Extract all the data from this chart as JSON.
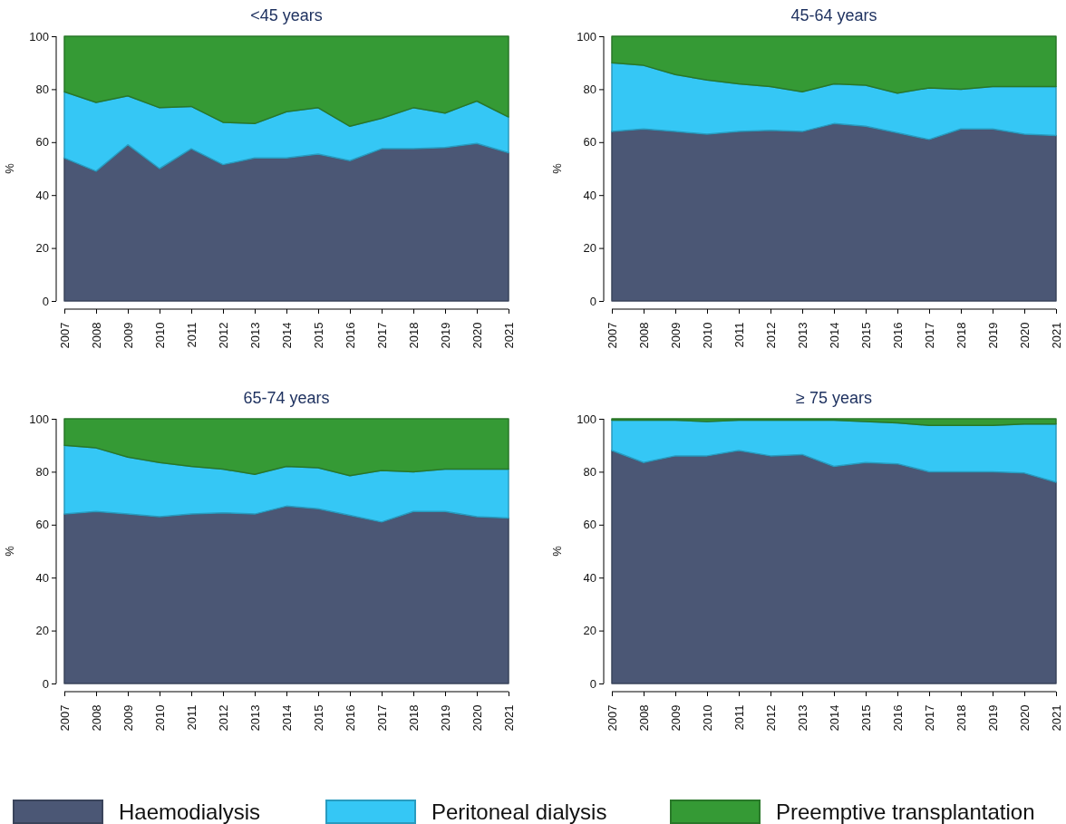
{
  "chart_data": [
    {
      "type": "area",
      "title": "<45 years",
      "ylabel": "%",
      "stacked": true,
      "legend": "bottom",
      "x": [
        2007,
        2008,
        2009,
        2010,
        2011,
        2012,
        2013,
        2014,
        2015,
        2016,
        2017,
        2018,
        2019,
        2020,
        2021
      ],
      "xlim": [
        2007,
        2021
      ],
      "xticks": [
        2007,
        2008,
        2009,
        2010,
        2011,
        2012,
        2013,
        2014,
        2015,
        2016,
        2017,
        2018,
        2019,
        2020,
        2021
      ],
      "ylim": [
        0,
        100
      ],
      "yticks": [
        0,
        20,
        40,
        60,
        80,
        100
      ],
      "series": [
        {
          "name": "Haemodialysis",
          "color": "#4b5775",
          "values": [
            54,
            49,
            59,
            50,
            57.5,
            51.5,
            54,
            54,
            55.5,
            53,
            57.5,
            57.5,
            58,
            59.5,
            56
          ]
        },
        {
          "name": "Peritoneal dialysis",
          "color": "#35c7f5",
          "values": [
            25,
            26,
            18.5,
            23,
            16,
            16,
            13,
            17.5,
            17.5,
            13,
            11.5,
            15.5,
            13,
            16,
            13.5
          ]
        },
        {
          "name": "Preemptive transplantation",
          "color": "#359a35",
          "values": [
            21,
            25,
            22.5,
            27,
            26.5,
            32.5,
            33,
            28.5,
            27,
            34,
            31,
            27,
            29,
            24.5,
            30.5
          ]
        }
      ]
    },
    {
      "type": "area",
      "title": "45-64 years",
      "ylabel": "%",
      "stacked": true,
      "x": [
        2007,
        2008,
        2009,
        2010,
        2011,
        2012,
        2013,
        2014,
        2015,
        2016,
        2017,
        2018,
        2019,
        2020,
        2021
      ],
      "xlim": [
        2007,
        2021
      ],
      "xticks": [
        2007,
        2008,
        2009,
        2010,
        2011,
        2012,
        2013,
        2014,
        2015,
        2016,
        2017,
        2018,
        2019,
        2020,
        2021
      ],
      "ylim": [
        0,
        100
      ],
      "yticks": [
        0,
        20,
        40,
        60,
        80,
        100
      ],
      "series": [
        {
          "color": "#4b5775",
          "values": [
            64,
            65,
            64,
            63,
            64,
            64.5,
            64,
            67,
            66,
            63.5,
            61,
            65,
            65,
            63,
            62.5
          ]
        },
        {
          "color": "#35c7f5",
          "values": [
            26,
            24,
            21.5,
            20.5,
            18,
            16.5,
            15,
            15,
            15.5,
            15,
            19.5,
            15,
            16,
            18,
            18.5
          ]
        },
        {
          "color": "#359a35",
          "values": [
            10,
            11,
            14.5,
            16.5,
            18,
            19,
            21,
            18,
            18.5,
            21.5,
            19.5,
            20,
            19,
            19,
            19
          ]
        }
      ]
    },
    {
      "type": "area",
      "title": "65-74 years",
      "ylabel": "%",
      "stacked": true,
      "x": [
        2007,
        2008,
        2009,
        2010,
        2011,
        2012,
        2013,
        2014,
        2015,
        2016,
        2017,
        2018,
        2019,
        2020,
        2021
      ],
      "xlim": [
        2007,
        2021
      ],
      "xticks": [
        2007,
        2008,
        2009,
        2010,
        2011,
        2012,
        2013,
        2014,
        2015,
        2016,
        2017,
        2018,
        2019,
        2020,
        2021
      ],
      "ylim": [
        0,
        100
      ],
      "yticks": [
        0,
        20,
        40,
        60,
        80,
        100
      ],
      "series": [
        {
          "color": "#4b5775",
          "values": [
            64,
            65,
            64,
            63,
            64,
            64.5,
            64,
            67,
            66,
            63.5,
            61,
            65,
            65,
            63,
            62.5
          ]
        },
        {
          "color": "#35c7f5",
          "values": [
            26,
            24,
            21.5,
            20.5,
            18,
            16.5,
            15,
            15,
            15.5,
            15,
            19.5,
            15,
            16,
            18,
            18.5
          ]
        },
        {
          "color": "#359a35",
          "values": [
            10,
            11,
            14.5,
            16.5,
            18,
            19,
            21,
            18,
            18.5,
            21.5,
            19.5,
            20,
            19,
            19,
            19
          ]
        }
      ]
    },
    {
      "type": "area",
      "title": "≥ 75 years",
      "ylabel": "%",
      "stacked": true,
      "x": [
        2007,
        2008,
        2009,
        2010,
        2011,
        2012,
        2013,
        2014,
        2015,
        2016,
        2017,
        2018,
        2019,
        2020,
        2021
      ],
      "xlim": [
        2007,
        2021
      ],
      "xticks": [
        2007,
        2008,
        2009,
        2010,
        2011,
        2012,
        2013,
        2014,
        2015,
        2016,
        2017,
        2018,
        2019,
        2020,
        2021
      ],
      "ylim": [
        0,
        100
      ],
      "yticks": [
        0,
        20,
        40,
        60,
        80,
        100
      ],
      "series": [
        {
          "color": "#4b5775",
          "values": [
            88,
            83.5,
            86,
            86,
            88,
            86,
            86.5,
            82,
            83.5,
            83,
            80,
            80,
            80,
            79.5,
            76
          ]
        },
        {
          "color": "#35c7f5",
          "values": [
            11.5,
            16,
            13.5,
            13,
            11.5,
            13.5,
            13,
            17.5,
            15.5,
            15.5,
            17.5,
            17.5,
            17.5,
            18.5,
            22
          ]
        },
        {
          "color": "#359a35",
          "values": [
            0.5,
            0.5,
            0.5,
            1,
            0.5,
            0.5,
            0.5,
            0.5,
            1,
            1.5,
            2.5,
            2.5,
            2.5,
            2,
            2
          ]
        }
      ]
    }
  ]
}
